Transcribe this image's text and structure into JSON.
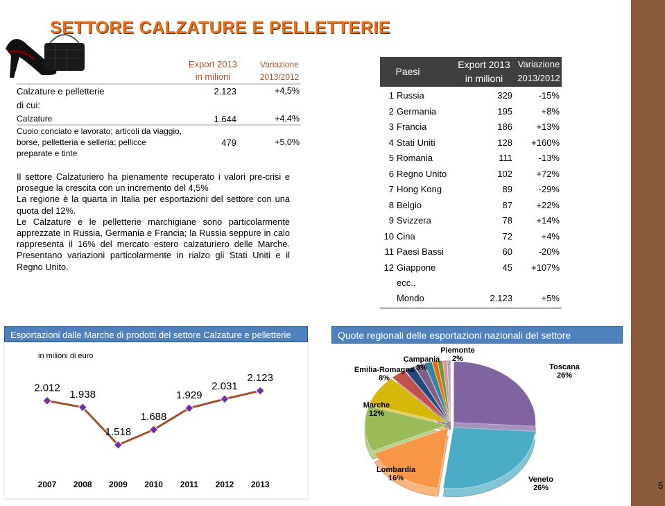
{
  "title": "SETTORE CALZATURE E PELLETTERIE",
  "summary_table": {
    "headers": [
      [
        "Export 2013",
        "in milioni"
      ],
      [
        "Variazione",
        "2013/2012"
      ]
    ],
    "rows": [
      {
        "label": [
          "Calzature e pelletterie"
        ],
        "export": "2.123",
        "change": "+4,5%"
      },
      {
        "label": [
          "di cui:"
        ]
      },
      {
        "label": [
          "Calzature"
        ],
        "export": "1.644",
        "change": "+4,4%"
      },
      {
        "label": [
          "Cuoio conciato e lavorato; articoli da viaggio,",
          "borse, pelletteria e selleria; pellicce",
          "preparate e tinte"
        ],
        "export": "479",
        "change": "+5,0%"
      }
    ]
  },
  "paragraphs": [
    "Il settore Calzaturiero ha pienamente recuperato i valori pre-crisi e prosegue la crescita con un incremento del 4,5%",
    "La regione è la quarta in Italia per esportazioni del settore con una quota del 12%.",
    "Le Calzature e le pelletterie marchigiane sono particolarmente apprezzate in Russia, Germania e Francia; la Russia seppure in calo rappresenta il 16% del mercato estero calzaturiero delle Marche. Presentano variazioni particolarmente in rialzo gli Stati Uniti e il Regno Unito."
  ],
  "country_table": {
    "headers": [
      "Paesi",
      [
        "Export 2013",
        "in milioni"
      ],
      [
        "Variazione",
        "2013/2012"
      ]
    ],
    "rows": [
      [
        "1",
        "Russia",
        "329",
        "-15%"
      ],
      [
        "2",
        "Germania",
        "195",
        "+8%"
      ],
      [
        "3",
        "Francia",
        "186",
        "+13%"
      ],
      [
        "4",
        "Stati Uniti",
        "128",
        "+160%"
      ],
      [
        "5",
        "Romania",
        "111",
        "-13%"
      ],
      [
        "6",
        "Regno Unito",
        "102",
        "+72%"
      ],
      [
        "7",
        "Hong Kong",
        "89",
        "-29%"
      ],
      [
        "8",
        "Belgio",
        "87",
        "+22%"
      ],
      [
        "9",
        "Svizzera",
        "78",
        "+14%"
      ],
      [
        "10",
        "Cina",
        "72",
        "+4%"
      ],
      [
        "11",
        "Paesi Bassi",
        "60",
        "-20%"
      ],
      [
        "12",
        "Giappone",
        "45",
        "+107%"
      ]
    ],
    "etc": "ecc..",
    "total": [
      "Mondo",
      "2.123",
      "+5%"
    ]
  },
  "chart_data": [
    {
      "type": "line",
      "title": "Esportazioni dalle Marche  di prodotti del settore Calzature e pelletterie",
      "subtitle": "in milioni di euro",
      "categories": [
        "2007",
        "2008",
        "2009",
        "2010",
        "2011",
        "2012",
        "2013"
      ],
      "series": [
        {
          "color": "#a0522d",
          "marker_color": "#7030a0",
          "values": [
            2012,
            1938,
            1518,
            1688,
            1929,
            2031,
            2123
          ],
          "value_labels": [
            "2.012",
            "1.938",
            "1.518",
            "1.688",
            "1.929",
            "2.031",
            "2.123"
          ]
        }
      ]
    },
    {
      "type": "pie",
      "title": "Quote regionali delle esportazioni nazionali del settore",
      "categories": [
        "Toscana",
        "Veneto",
        "Lombardia",
        "Marche",
        "Emilia-Romagna",
        "Campania",
        "Piemonte",
        null,
        null,
        null,
        null,
        null,
        null
      ],
      "values": [
        26,
        26,
        16,
        12,
        8,
        3,
        2,
        2,
        1.5,
        1,
        1,
        0.8,
        0.7
      ],
      "value_labels": [
        "26%",
        "26%",
        "16%",
        "12%",
        "8%",
        "3%",
        "2%",
        null,
        null,
        null,
        null,
        null,
        null
      ],
      "colors": [
        "#8064a2",
        "#4bacc6",
        "#f79646",
        "#9bbb59",
        "#d4b80a",
        "#c0504d",
        "#1f497d",
        "#7f6084",
        "#31859c",
        "#e46c0a",
        "#77933c",
        "#d99694",
        "#b3a2c7"
      ]
    }
  ]
}
